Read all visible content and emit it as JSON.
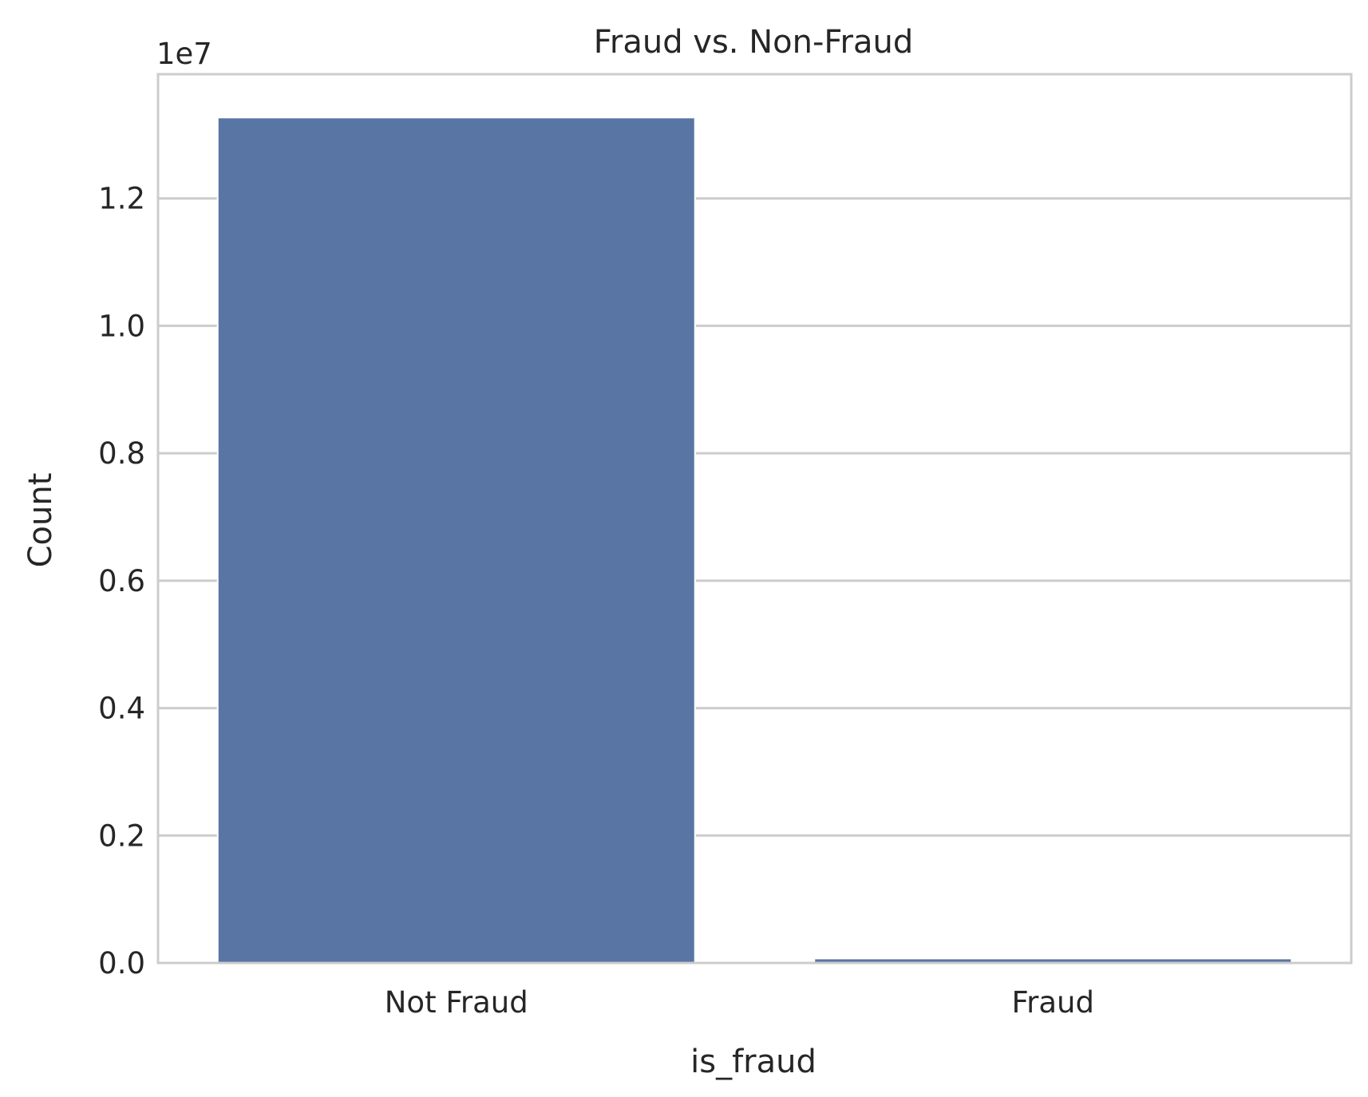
{
  "chart_data": {
    "type": "bar",
    "title": "Fraud vs. Non-Fraud",
    "xlabel": "is_fraud",
    "ylabel": "Count",
    "y_offset_label": "1e7",
    "categories": [
      "Not Fraud",
      "Fraud"
    ],
    "values": [
      13270000,
      70000
    ],
    "ylim": [
      0,
      13950000
    ],
    "yticks": [
      0,
      2000000,
      4000000,
      6000000,
      8000000,
      10000000,
      12000000
    ],
    "ytick_labels": [
      "0.0",
      "0.2",
      "0.4",
      "0.6",
      "0.8",
      "1.0",
      "1.2"
    ],
    "grid": "y",
    "bar_color": "#5975a4",
    "grid_color": "#cccccc",
    "spine_color": "#cccccc"
  }
}
